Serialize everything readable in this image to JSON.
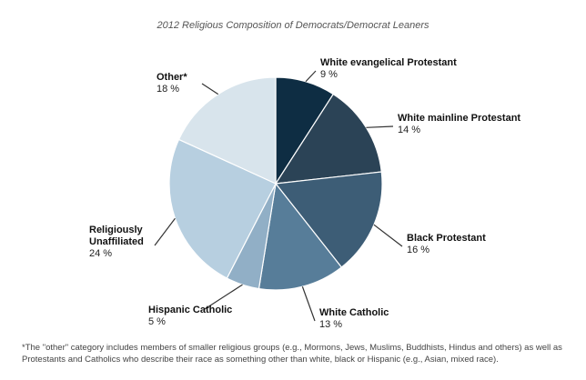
{
  "chart_data": {
    "type": "pie",
    "title": "2012 Religious Composition of Democrats/Democrat Leaners",
    "unit": "%",
    "slices": [
      {
        "label": "White evangelical Protestant",
        "value": 9,
        "color": "#0e2d43"
      },
      {
        "label": "White mainline Protestant",
        "value": 14,
        "color": "#2b4356"
      },
      {
        "label": "Black Protestant",
        "value": 16,
        "color": "#3d5d76"
      },
      {
        "label": "White Catholic",
        "value": 13,
        "color": "#577d99"
      },
      {
        "label": "Hispanic Catholic",
        "value": 5,
        "color": "#91afc6"
      },
      {
        "label": "Religiously Unaffiliated",
        "value": 24,
        "color": "#b7cfe0"
      },
      {
        "label": "Other*",
        "value": 18,
        "color": "#d8e4ec"
      }
    ]
  },
  "footnote": "*The \"other\" category includes members of smaller religious groups (e.g., Mormons, Jews, Muslims, Buddhists, Hindus and others) as well as Protestants and Catholics who describe their race as something other than white, black or Hispanic (e.g., Asian, mixed race)."
}
